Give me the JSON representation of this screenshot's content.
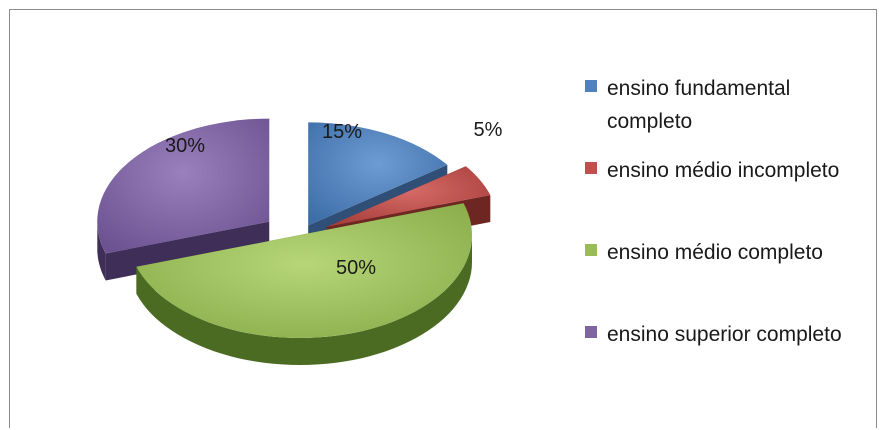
{
  "chart_data": {
    "type": "pie",
    "three_d": true,
    "exploded": true,
    "title": "",
    "categories": [
      "ensino fundamental completo",
      "ensino médio incompleto",
      "ensino médio completo",
      "ensino superior completo"
    ],
    "values": [
      15,
      5,
      50,
      30
    ],
    "data_labels": [
      "15%",
      "5%",
      "50%",
      "30%"
    ],
    "colors": [
      "#4f81bd",
      "#c0504d",
      "#9bbb59",
      "#8064a2"
    ],
    "legend_position": "right"
  }
}
